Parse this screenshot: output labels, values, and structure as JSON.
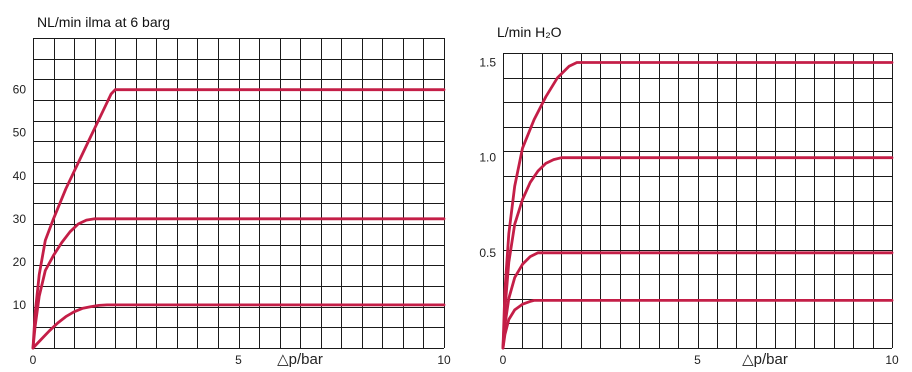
{
  "chart_data": [
    {
      "type": "line",
      "title": "NL/min ilma at 6 barg",
      "xlabel": "△p/bar",
      "ylabel": "",
      "xlim": [
        0,
        10
      ],
      "ylim": [
        0,
        72
      ],
      "x_ticks": [
        0,
        5,
        10
      ],
      "y_ticks": [
        10,
        20,
        30,
        40,
        50,
        60
      ],
      "grid": true,
      "line_color": "#c41e47",
      "series": [
        {
          "x": [
            0,
            0.05,
            0.15,
            0.3,
            0.5,
            0.8,
            1.1,
            1.4,
            1.7,
            1.9,
            2.0,
            10
          ],
          "values": [
            0,
            8,
            17,
            25,
            30,
            37,
            43,
            49,
            55,
            59,
            60,
            60
          ]
        },
        {
          "x": [
            0,
            0.05,
            0.15,
            0.3,
            0.5,
            0.7,
            0.9,
            1.1,
            1.3,
            1.5,
            10
          ],
          "values": [
            0,
            5,
            12,
            18,
            21.5,
            24.5,
            27,
            28.8,
            29.7,
            30,
            30
          ]
        },
        {
          "x": [
            0,
            0.2,
            0.4,
            0.6,
            0.8,
            1.0,
            1.2,
            1.4,
            1.6,
            1.8,
            2.0,
            10
          ],
          "values": [
            0,
            2,
            4,
            5.8,
            7.3,
            8.4,
            9.2,
            9.6,
            9.9,
            10,
            10,
            10
          ]
        }
      ]
    },
    {
      "type": "line",
      "title": "L/min H₂O",
      "xlabel": "△p/bar",
      "ylabel": "",
      "xlim": [
        0,
        10
      ],
      "ylim": [
        0,
        1.55
      ],
      "x_ticks": [
        0,
        5,
        10
      ],
      "y_ticks": [
        0.5,
        1.0,
        1.5
      ],
      "y_tick_labels": [
        "0.5",
        "1.0",
        "1.5"
      ],
      "grid": true,
      "line_color": "#c41e47",
      "series": [
        {
          "x": [
            0,
            0.05,
            0.15,
            0.3,
            0.5,
            0.8,
            1.1,
            1.4,
            1.7,
            1.9,
            2.0,
            10
          ],
          "values": [
            0,
            0.3,
            0.6,
            0.85,
            1.05,
            1.2,
            1.32,
            1.42,
            1.48,
            1.5,
            1.5,
            1.5
          ]
        },
        {
          "x": [
            0,
            0.05,
            0.15,
            0.3,
            0.5,
            0.7,
            0.9,
            1.1,
            1.3,
            1.5,
            10
          ],
          "values": [
            0,
            0.2,
            0.45,
            0.65,
            0.78,
            0.87,
            0.93,
            0.97,
            0.99,
            1.0,
            1.0
          ]
        },
        {
          "x": [
            0,
            0.05,
            0.15,
            0.3,
            0.5,
            0.7,
            0.9,
            1.0,
            10
          ],
          "values": [
            0,
            0.12,
            0.26,
            0.37,
            0.44,
            0.48,
            0.5,
            0.5,
            0.5
          ]
        },
        {
          "x": [
            0,
            0.05,
            0.15,
            0.3,
            0.5,
            0.7,
            0.8,
            10
          ],
          "values": [
            0,
            0.07,
            0.15,
            0.2,
            0.23,
            0.245,
            0.25,
            0.25
          ]
        }
      ]
    }
  ]
}
